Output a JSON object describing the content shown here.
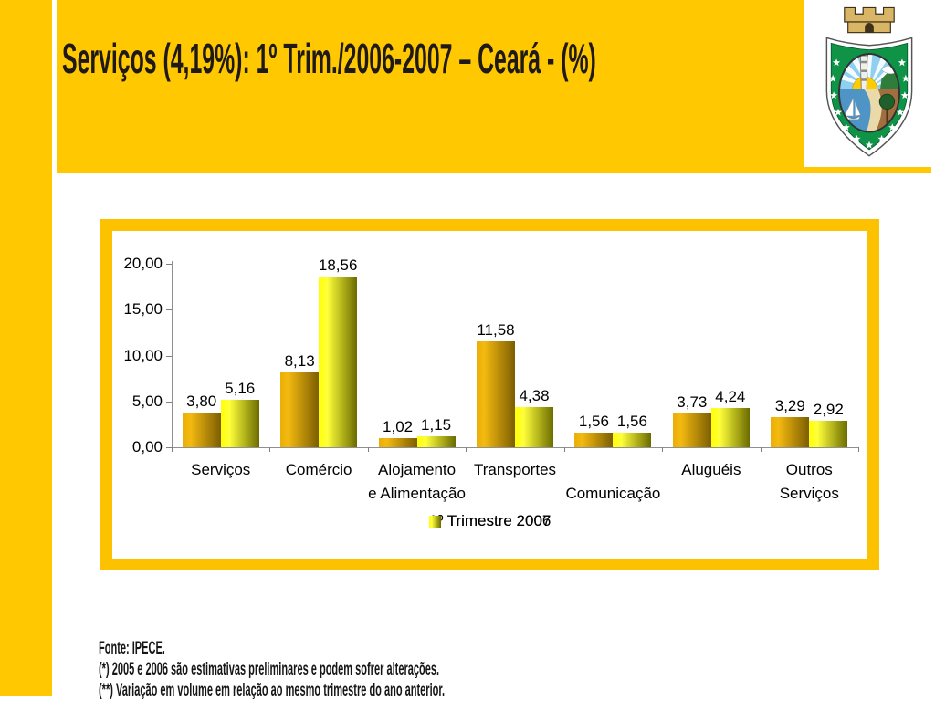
{
  "slide": {
    "title": "Serviços (4,19%): 1º Trim./2006-2007 – Ceará - (%)",
    "footer_lines": [
      "Fonte: IPECE.",
      "(*) 2005 e 2006 são estimativas preliminares e podem sofrer alterações.",
      "(**) Variação em volume em relação ao mesmo trimestre do ano anterior."
    ],
    "colors": {
      "background_yellow": "#FFC800",
      "chart_border_yellow": "#FCC200",
      "title_text": "#1F1A17",
      "series_2006_gradient_start": "#EAAE06",
      "series_2006_gradient_end": "#7C5E02",
      "series_2007_gradient_start": "#FFFF05",
      "series_2007_gradient_end": "#6B6B00",
      "axis_gray": "#808080"
    },
    "crest_alt": "ceara-state-coat-of-arms"
  },
  "chart_data": {
    "type": "bar",
    "title": "",
    "categories": [
      "Serviços",
      "Comércio",
      "Alojamento e Alimentação",
      "Transportes",
      "Comunicação",
      "Aluguéis",
      "Outros Serviços"
    ],
    "axis_label_rows": [
      {
        "row1": "Serviços",
        "row2": ""
      },
      {
        "row1": "Comércio",
        "row2": ""
      },
      {
        "row1": "Alojamento",
        "row2": "e Alimentação"
      },
      {
        "row1": "Transportes",
        "row2": ""
      },
      {
        "row1": "",
        "row2": "Comunicação"
      },
      {
        "row1": "Aluguéis",
        "row2": ""
      },
      {
        "row1": "Outros",
        "row2": "Serviços"
      }
    ],
    "series": [
      {
        "name": "1º Trimestre 2006",
        "values": [
          3.8,
          8.13,
          1.02,
          11.58,
          1.56,
          3.73,
          3.29
        ]
      },
      {
        "name": "1º Trimestre 2007",
        "values": [
          5.16,
          18.56,
          1.15,
          4.38,
          1.56,
          4.24,
          2.92
        ]
      }
    ],
    "y_axis": {
      "tick_values": [
        0,
        5,
        10,
        15,
        20
      ],
      "tick_labels": [
        "0,00",
        "5,00",
        "10,00",
        "15,00",
        "20,00"
      ],
      "min": 0,
      "max": 20
    },
    "value_labels_shown": true,
    "decimal_format": "comma",
    "grid": "off",
    "legend_position": "bottom"
  }
}
